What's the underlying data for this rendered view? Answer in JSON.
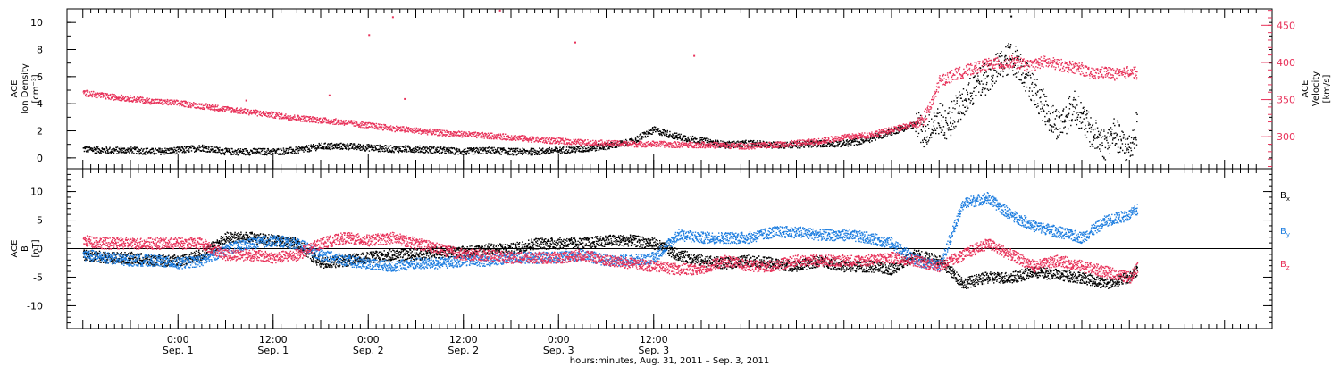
{
  "chart_data": [
    {
      "type": "scatter",
      "panel": "top",
      "left_axis": {
        "label_lines": [
          "ACE",
          "Ion Density",
          "[cm⁻³]"
        ],
        "ylim": [
          -0.8,
          11
        ],
        "ticks": [
          0,
          2,
          4,
          6,
          8,
          10
        ],
        "color": "#000000"
      },
      "right_axis": {
        "label_lines": [
          "ACE",
          "Velocity",
          "[km/s]"
        ],
        "ylim": [
          257,
          472
        ],
        "ticks": [
          300,
          350,
          400,
          450
        ],
        "color": "#e8325a"
      },
      "series": [
        {
          "axis": "left",
          "color": "#000000",
          "x": [
            0,
            3,
            6,
            9,
            12,
            15,
            18,
            21,
            24,
            27,
            30,
            33,
            36,
            39,
            42,
            45,
            48,
            51,
            54,
            57,
            60,
            63,
            66,
            69,
            72,
            75,
            78,
            81,
            84,
            87,
            90,
            93,
            96,
            99,
            102,
            105
          ],
          "y": [
            0.7,
            0.6,
            0.6,
            0.5,
            0.6,
            0.8,
            0.5,
            0.5,
            0.5,
            0.6,
            0.9,
            0.9,
            0.8,
            0.7,
            0.7,
            0.6,
            0.5,
            0.6,
            0.5,
            0.5,
            0.6,
            0.7,
            0.9,
            1.2,
            2.1,
            1.6,
            1.3,
            1.0,
            1.1,
            1.0,
            1.0,
            1.1,
            1.1,
            1.4,
            2.0,
            2.5
          ]
        },
        {
          "axis": "right",
          "color": "#e8325a",
          "x": [
            0,
            3,
            6,
            9,
            12,
            15,
            18,
            21,
            24,
            27,
            30,
            33,
            36,
            39,
            42,
            45,
            48,
            51,
            54,
            57,
            60,
            63,
            66,
            69,
            72,
            75,
            78,
            81,
            84,
            87,
            90,
            93,
            96,
            99,
            102,
            105
          ],
          "y": [
            360,
            355,
            352,
            348,
            346,
            342,
            338,
            334,
            330,
            326,
            323,
            320,
            316,
            312,
            309,
            306,
            304,
            302,
            300,
            297,
            295,
            293,
            292,
            291,
            291,
            290,
            290,
            289,
            288,
            290,
            292,
            295,
            300,
            303,
            310,
            318
          ]
        },
        {
          "axis": "left",
          "color": "#000000",
          "x": [
            105,
            106,
            107,
            108,
            109,
            110,
            111,
            112,
            113,
            114,
            115,
            116,
            117,
            118,
            119,
            120,
            121,
            122,
            123,
            124,
            125,
            126,
            127,
            128,
            129,
            130,
            131,
            132,
            133
          ],
          "y": [
            2.5,
            2.0,
            2.5,
            3.0,
            2.5,
            3.5,
            4.0,
            5.0,
            5.5,
            6.0,
            6.5,
            7.0,
            7.5,
            7.0,
            6.0,
            5.0,
            4.0,
            3.0,
            2.5,
            3.0,
            4.0,
            3.0,
            2.0,
            1.5,
            1.0,
            2.0,
            1.0,
            0.7,
            2.5
          ]
        },
        {
          "axis": "right",
          "color": "#e8325a",
          "x": [
            105,
            106,
            107,
            108,
            109,
            110,
            111,
            112,
            113,
            114,
            115,
            116,
            117,
            118,
            119,
            120,
            121,
            122,
            123,
            124,
            125,
            126,
            127,
            128,
            129,
            130,
            131,
            132,
            133
          ],
          "y": [
            318,
            325,
            345,
            375,
            380,
            385,
            388,
            392,
            395,
            398,
            400,
            398,
            402,
            400,
            396,
            398,
            402,
            400,
            398,
            395,
            394,
            392,
            385,
            386,
            388,
            385,
            384,
            390,
            385
          ]
        }
      ],
      "outliers": [
        {
          "x": 20.5,
          "y": 350,
          "axis": "right",
          "color": "#e8325a"
        },
        {
          "x": 31,
          "y": 357,
          "axis": "right",
          "color": "#e8325a"
        },
        {
          "x": 36,
          "y": 438,
          "axis": "right",
          "color": "#e8325a"
        },
        {
          "x": 39,
          "y": 462,
          "axis": "right",
          "color": "#e8325a"
        },
        {
          "x": 40.5,
          "y": 352,
          "axis": "right",
          "color": "#e8325a"
        },
        {
          "x": 52.5,
          "y": 471,
          "axis": "right",
          "color": "#e8325a"
        },
        {
          "x": 62,
          "y": 428,
          "axis": "right",
          "color": "#e8325a"
        },
        {
          "x": 77,
          "y": 410,
          "axis": "right",
          "color": "#e8325a"
        },
        {
          "x": 117,
          "y": 10.5,
          "axis": "left",
          "color": "#000000"
        }
      ]
    },
    {
      "type": "scatter",
      "panel": "bottom",
      "left_axis": {
        "label_lines": [
          "ACE",
          "B",
          "[nT]"
        ],
        "ylim": [
          -14,
          14
        ],
        "ticks": [
          -10,
          -5,
          0,
          5,
          10
        ],
        "color": "#000000"
      },
      "zero_line": true,
      "x_axis": {
        "xlim": [
          -2,
          150
        ],
        "major_ticks": [
          {
            "x": 12,
            "time": "0:00",
            "date": "Sep. 1"
          },
          {
            "x": 24,
            "time": "12:00",
            "date": "Sep. 1"
          },
          {
            "x": 36,
            "time": "0:00",
            "date": "Sep. 2"
          },
          {
            "x": 48,
            "time": "12:00",
            "date": "Sep. 2"
          },
          {
            "x": 60,
            "time": "0:00",
            "date": "Sep. 3"
          },
          {
            "x": 72,
            "time": "12:00",
            "date": "Sep. 3"
          }
        ],
        "title": "hours:minutes, Aug. 31, 2011 – Sep. 3, 2011"
      },
      "series": [
        {
          "name": "Bx",
          "color": "#000000",
          "x": [
            0,
            3,
            6,
            9,
            12,
            15,
            18,
            21,
            24,
            27,
            30,
            33,
            36,
            39,
            42,
            45,
            48,
            51,
            54,
            57,
            60,
            63,
            66,
            69,
            72,
            75,
            78,
            81,
            84,
            87,
            90,
            93,
            96,
            99,
            102,
            105,
            108,
            111,
            114,
            117,
            120,
            123,
            126,
            129,
            132,
            133
          ],
          "y": [
            -1,
            -1.5,
            -1.5,
            -2,
            -2,
            -1,
            2,
            2,
            1.5,
            1,
            -2.5,
            -2,
            -1.5,
            -1,
            -1,
            -0.5,
            -0.5,
            0,
            0,
            1,
            1,
            1,
            1.5,
            1.5,
            1,
            -1,
            -2,
            -2.5,
            -2,
            -2.5,
            -3,
            -2,
            -3,
            -3,
            -3.5,
            -1,
            -2,
            -6,
            -5,
            -5,
            -4,
            -4.5,
            -5,
            -6,
            -5,
            -3.5
          ]
        },
        {
          "name": "By",
          "color": "#1e7ee0",
          "x": [
            0,
            3,
            6,
            9,
            12,
            15,
            18,
            21,
            24,
            27,
            30,
            33,
            36,
            39,
            42,
            45,
            48,
            51,
            54,
            57,
            60,
            63,
            66,
            69,
            72,
            75,
            78,
            81,
            84,
            87,
            90,
            93,
            96,
            99,
            102,
            105,
            108,
            111,
            114,
            117,
            120,
            123,
            126,
            129,
            132,
            133
          ],
          "y": [
            -1,
            -1.5,
            -2,
            -2,
            -2.5,
            -2,
            0,
            1,
            1.5,
            1,
            -1,
            -2,
            -2.5,
            -3,
            -2.5,
            -2.5,
            -2,
            -2,
            -1.5,
            -1.5,
            -1.5,
            -1,
            -2,
            -2,
            -1.5,
            2.5,
            2,
            2,
            2,
            3,
            3,
            2.5,
            2.5,
            2,
            1,
            -2,
            -3,
            8,
            9,
            6,
            4,
            3,
            2,
            5,
            6,
            7
          ]
        },
        {
          "name": "Bz",
          "color": "#e8325a",
          "x": [
            0,
            3,
            6,
            9,
            12,
            15,
            18,
            21,
            24,
            27,
            30,
            33,
            36,
            39,
            42,
            45,
            48,
            51,
            54,
            57,
            60,
            63,
            66,
            69,
            72,
            75,
            78,
            81,
            84,
            87,
            90,
            93,
            96,
            99,
            102,
            105,
            108,
            111,
            114,
            117,
            120,
            123,
            126,
            129,
            132,
            133
          ],
          "y": [
            1.5,
            1,
            1,
            1,
            1,
            1,
            -1,
            -1,
            -1.5,
            -1,
            1,
            2,
            1.5,
            2,
            1,
            0,
            -1,
            -1,
            -1.5,
            -1.5,
            -1.5,
            -1,
            -2,
            -2.5,
            -3,
            -3.5,
            -3.5,
            -2,
            -3,
            -3,
            -2,
            -2,
            -2,
            -2,
            -1.5,
            -2,
            -3,
            -1,
            1,
            -1,
            -3,
            -2,
            -3,
            -4,
            -5,
            -3
          ]
        }
      ],
      "legend": [
        {
          "label": "B",
          "sub": "x",
          "color": "#000000"
        },
        {
          "label": "B",
          "sub": "y",
          "color": "#1e7ee0"
        },
        {
          "label": "B",
          "sub": "z",
          "color": "#e8325a"
        }
      ],
      "legend_placement": "right"
    }
  ]
}
